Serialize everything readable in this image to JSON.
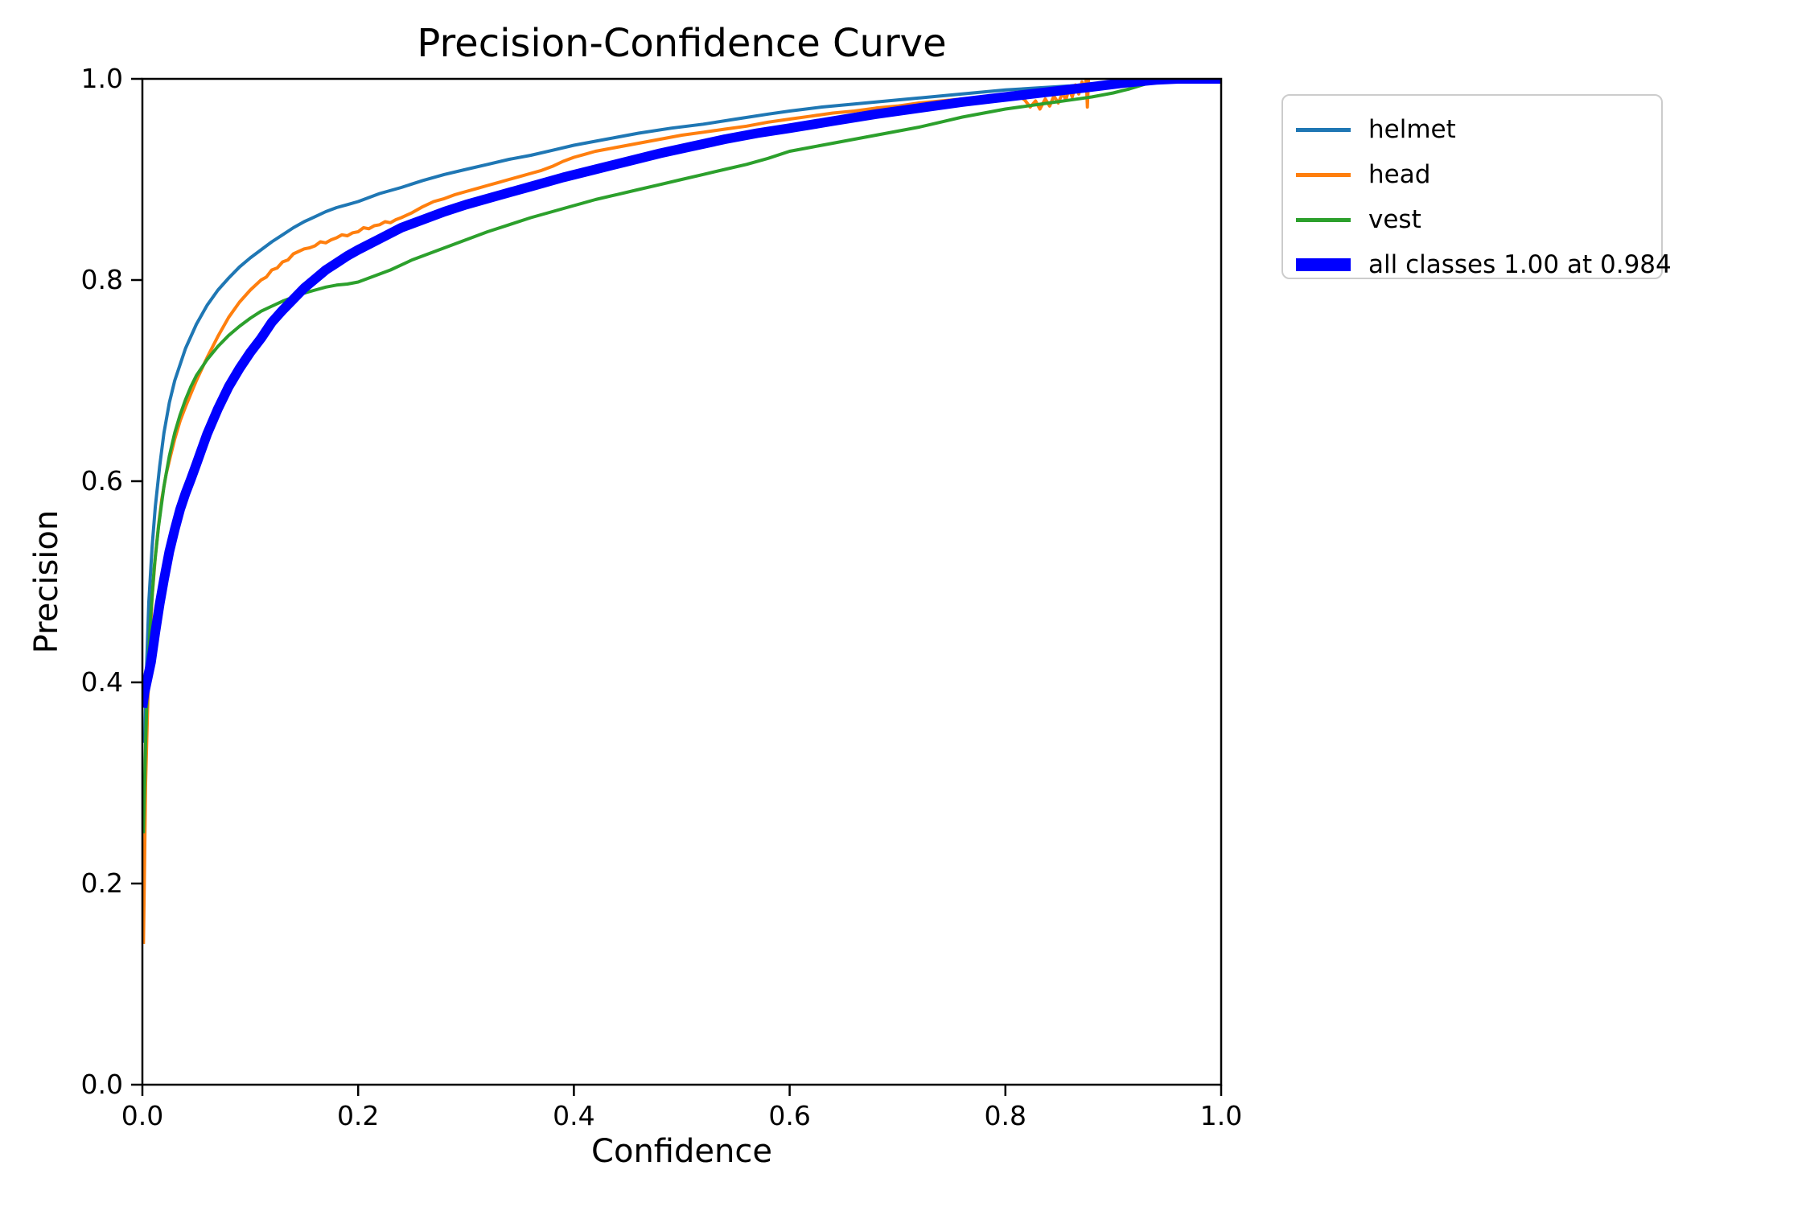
{
  "figure": {
    "title": "Precision-Confidence Curve",
    "background_color": "#ffffff",
    "frame_color": "#000000"
  },
  "axes": {
    "xlabel": "Confidence",
    "ylabel": "Precision",
    "xlim": [
      0.0,
      1.0
    ],
    "ylim": [
      0.0,
      1.0
    ],
    "x_tick_values": [
      0.0,
      0.2,
      0.4,
      0.6,
      0.8,
      1.0
    ],
    "x_tick_labels": [
      "0.0",
      "0.2",
      "0.4",
      "0.6",
      "0.8",
      "1.0"
    ],
    "y_tick_values": [
      0.0,
      0.2,
      0.4,
      0.6,
      0.8,
      1.0
    ],
    "y_tick_labels": [
      "0.0",
      "0.2",
      "0.4",
      "0.6",
      "0.8",
      "1.0"
    ]
  },
  "legend": {
    "items": [
      {
        "label": "helmet",
        "color": "#1f77b4",
        "thickness": 5
      },
      {
        "label": "head",
        "color": "#ff7f0e",
        "thickness": 5
      },
      {
        "label": "vest",
        "color": "#2ca02c",
        "thickness": 5
      },
      {
        "label": "all classes 1.00 at 0.984",
        "color": "#0000ff",
        "thickness": 16
      }
    ]
  },
  "chart_data": {
    "type": "line",
    "title": "Precision-Confidence Curve",
    "xlabel": "Confidence",
    "ylabel": "Precision",
    "xlim": [
      0.0,
      1.0
    ],
    "ylim": [
      0.0,
      1.0
    ],
    "grid": false,
    "legend_position": "outside upper right",
    "series": [
      {
        "name": "helmet",
        "color": "#1f77b4",
        "width": 4,
        "points": [
          [
            0.002,
            0.34
          ],
          [
            0.004,
            0.42
          ],
          [
            0.006,
            0.48
          ],
          [
            0.009,
            0.535
          ],
          [
            0.012,
            0.575
          ],
          [
            0.016,
            0.615
          ],
          [
            0.02,
            0.648
          ],
          [
            0.025,
            0.678
          ],
          [
            0.03,
            0.7
          ],
          [
            0.04,
            0.732
          ],
          [
            0.05,
            0.756
          ],
          [
            0.06,
            0.775
          ],
          [
            0.07,
            0.79
          ],
          [
            0.08,
            0.802
          ],
          [
            0.09,
            0.813
          ],
          [
            0.1,
            0.822
          ],
          [
            0.11,
            0.83
          ],
          [
            0.12,
            0.838
          ],
          [
            0.13,
            0.845
          ],
          [
            0.14,
            0.852
          ],
          [
            0.15,
            0.858
          ],
          [
            0.16,
            0.863
          ],
          [
            0.17,
            0.868
          ],
          [
            0.18,
            0.872
          ],
          [
            0.19,
            0.875
          ],
          [
            0.2,
            0.878
          ],
          [
            0.21,
            0.882
          ],
          [
            0.22,
            0.886
          ],
          [
            0.24,
            0.892
          ],
          [
            0.26,
            0.899
          ],
          [
            0.28,
            0.905
          ],
          [
            0.3,
            0.91
          ],
          [
            0.32,
            0.915
          ],
          [
            0.34,
            0.92
          ],
          [
            0.36,
            0.924
          ],
          [
            0.38,
            0.929
          ],
          [
            0.4,
            0.934
          ],
          [
            0.43,
            0.94
          ],
          [
            0.46,
            0.946
          ],
          [
            0.49,
            0.951
          ],
          [
            0.52,
            0.955
          ],
          [
            0.55,
            0.96
          ],
          [
            0.58,
            0.965
          ],
          [
            0.6,
            0.968
          ],
          [
            0.63,
            0.972
          ],
          [
            0.66,
            0.975
          ],
          [
            0.69,
            0.978
          ],
          [
            0.72,
            0.981
          ],
          [
            0.75,
            0.984
          ],
          [
            0.78,
            0.987
          ],
          [
            0.8,
            0.989
          ],
          [
            0.83,
            0.991
          ],
          [
            0.86,
            0.993
          ],
          [
            0.89,
            0.996
          ],
          [
            0.91,
            0.998
          ],
          [
            0.93,
            1.0
          ]
        ]
      },
      {
        "name": "head",
        "color": "#ff7f0e",
        "width": 4,
        "points": [
          [
            0.001,
            0.14
          ],
          [
            0.002,
            0.22
          ],
          [
            0.003,
            0.3
          ],
          [
            0.005,
            0.38
          ],
          [
            0.007,
            0.44
          ],
          [
            0.009,
            0.485
          ],
          [
            0.012,
            0.525
          ],
          [
            0.015,
            0.556
          ],
          [
            0.018,
            0.582
          ],
          [
            0.022,
            0.607
          ],
          [
            0.026,
            0.625
          ],
          [
            0.03,
            0.642
          ],
          [
            0.035,
            0.66
          ],
          [
            0.04,
            0.674
          ],
          [
            0.045,
            0.687
          ],
          [
            0.05,
            0.7
          ],
          [
            0.06,
            0.723
          ],
          [
            0.07,
            0.744
          ],
          [
            0.08,
            0.763
          ],
          [
            0.09,
            0.778
          ],
          [
            0.1,
            0.79
          ],
          [
            0.11,
            0.8
          ],
          [
            0.115,
            0.803
          ],
          [
            0.12,
            0.81
          ],
          [
            0.125,
            0.812
          ],
          [
            0.13,
            0.818
          ],
          [
            0.135,
            0.82
          ],
          [
            0.14,
            0.826
          ],
          [
            0.15,
            0.831
          ],
          [
            0.155,
            0.832
          ],
          [
            0.16,
            0.834
          ],
          [
            0.165,
            0.838
          ],
          [
            0.17,
            0.837
          ],
          [
            0.175,
            0.84
          ],
          [
            0.18,
            0.842
          ],
          [
            0.185,
            0.845
          ],
          [
            0.19,
            0.844
          ],
          [
            0.195,
            0.847
          ],
          [
            0.2,
            0.848
          ],
          [
            0.205,
            0.852
          ],
          [
            0.21,
            0.851
          ],
          [
            0.215,
            0.854
          ],
          [
            0.22,
            0.855
          ],
          [
            0.225,
            0.858
          ],
          [
            0.23,
            0.857
          ],
          [
            0.235,
            0.86
          ],
          [
            0.24,
            0.862
          ],
          [
            0.25,
            0.867
          ],
          [
            0.26,
            0.873
          ],
          [
            0.27,
            0.878
          ],
          [
            0.28,
            0.881
          ],
          [
            0.29,
            0.885
          ],
          [
            0.3,
            0.888
          ],
          [
            0.31,
            0.891
          ],
          [
            0.32,
            0.894
          ],
          [
            0.33,
            0.897
          ],
          [
            0.34,
            0.9
          ],
          [
            0.35,
            0.903
          ],
          [
            0.36,
            0.906
          ],
          [
            0.37,
            0.909
          ],
          [
            0.38,
            0.913
          ],
          [
            0.39,
            0.918
          ],
          [
            0.4,
            0.922
          ],
          [
            0.41,
            0.925
          ],
          [
            0.42,
            0.928
          ],
          [
            0.43,
            0.93
          ],
          [
            0.44,
            0.932
          ],
          [
            0.45,
            0.934
          ],
          [
            0.46,
            0.936
          ],
          [
            0.47,
            0.938
          ],
          [
            0.48,
            0.94
          ],
          [
            0.49,
            0.942
          ],
          [
            0.5,
            0.944
          ],
          [
            0.52,
            0.947
          ],
          [
            0.54,
            0.95
          ],
          [
            0.56,
            0.953
          ],
          [
            0.58,
            0.957
          ],
          [
            0.6,
            0.96
          ],
          [
            0.62,
            0.963
          ],
          [
            0.64,
            0.966
          ],
          [
            0.66,
            0.968
          ],
          [
            0.68,
            0.971
          ],
          [
            0.7,
            0.973
          ],
          [
            0.72,
            0.976
          ],
          [
            0.74,
            0.978
          ],
          [
            0.76,
            0.98
          ],
          [
            0.78,
            0.982
          ],
          [
            0.795,
            0.9835
          ],
          [
            0.81,
            0.985
          ],
          [
            0.818,
            0.979
          ],
          [
            0.823,
            0.972
          ],
          [
            0.828,
            0.978
          ],
          [
            0.832,
            0.97
          ],
          [
            0.837,
            0.98
          ],
          [
            0.841,
            0.973
          ],
          [
            0.845,
            0.983
          ],
          [
            0.849,
            0.976
          ],
          [
            0.853,
            0.986
          ],
          [
            0.856,
            0.979
          ],
          [
            0.859,
            0.99
          ],
          [
            0.862,
            0.982
          ],
          [
            0.865,
            0.994
          ],
          [
            0.868,
            0.985
          ],
          [
            0.871,
            0.997
          ],
          [
            0.873,
            0.988
          ],
          [
            0.875,
            1.0
          ],
          [
            0.876,
            0.972
          ],
          [
            0.877,
            1.0
          ]
        ]
      },
      {
        "name": "vest",
        "color": "#2ca02c",
        "width": 4,
        "points": [
          [
            0.001,
            0.25
          ],
          [
            0.003,
            0.34
          ],
          [
            0.005,
            0.41
          ],
          [
            0.008,
            0.47
          ],
          [
            0.011,
            0.515
          ],
          [
            0.015,
            0.555
          ],
          [
            0.02,
            0.595
          ],
          [
            0.025,
            0.625
          ],
          [
            0.03,
            0.648
          ],
          [
            0.035,
            0.666
          ],
          [
            0.04,
            0.681
          ],
          [
            0.045,
            0.694
          ],
          [
            0.05,
            0.705
          ],
          [
            0.06,
            0.721
          ],
          [
            0.07,
            0.734
          ],
          [
            0.08,
            0.745
          ],
          [
            0.09,
            0.754
          ],
          [
            0.1,
            0.762
          ],
          [
            0.11,
            0.769
          ],
          [
            0.12,
            0.774
          ],
          [
            0.13,
            0.779
          ],
          [
            0.14,
            0.783
          ],
          [
            0.15,
            0.787
          ],
          [
            0.16,
            0.79
          ],
          [
            0.17,
            0.793
          ],
          [
            0.18,
            0.795
          ],
          [
            0.19,
            0.796
          ],
          [
            0.2,
            0.798
          ],
          [
            0.21,
            0.802
          ],
          [
            0.22,
            0.806
          ],
          [
            0.23,
            0.81
          ],
          [
            0.24,
            0.815
          ],
          [
            0.25,
            0.82
          ],
          [
            0.26,
            0.824
          ],
          [
            0.27,
            0.828
          ],
          [
            0.28,
            0.832
          ],
          [
            0.29,
            0.836
          ],
          [
            0.3,
            0.84
          ],
          [
            0.32,
            0.848
          ],
          [
            0.34,
            0.855
          ],
          [
            0.36,
            0.862
          ],
          [
            0.38,
            0.868
          ],
          [
            0.4,
            0.874
          ],
          [
            0.42,
            0.88
          ],
          [
            0.44,
            0.885
          ],
          [
            0.46,
            0.89
          ],
          [
            0.48,
            0.895
          ],
          [
            0.5,
            0.9
          ],
          [
            0.52,
            0.905
          ],
          [
            0.54,
            0.91
          ],
          [
            0.56,
            0.915
          ],
          [
            0.58,
            0.921
          ],
          [
            0.6,
            0.928
          ],
          [
            0.62,
            0.932
          ],
          [
            0.64,
            0.936
          ],
          [
            0.66,
            0.94
          ],
          [
            0.68,
            0.944
          ],
          [
            0.7,
            0.948
          ],
          [
            0.72,
            0.952
          ],
          [
            0.74,
            0.957
          ],
          [
            0.76,
            0.962
          ],
          [
            0.78,
            0.966
          ],
          [
            0.8,
            0.97
          ],
          [
            0.82,
            0.973
          ],
          [
            0.84,
            0.976
          ],
          [
            0.86,
            0.979
          ],
          [
            0.88,
            0.982
          ],
          [
            0.9,
            0.986
          ],
          [
            0.915,
            0.99
          ],
          [
            0.93,
            0.995
          ]
        ]
      },
      {
        "name": "all classes",
        "color": "#0000ff",
        "width": 12,
        "annotation": "1.00 at 0.984",
        "points": [
          [
            0.0,
            0.375
          ],
          [
            0.002,
            0.39
          ],
          [
            0.005,
            0.405
          ],
          [
            0.008,
            0.42
          ],
          [
            0.012,
            0.45
          ],
          [
            0.016,
            0.478
          ],
          [
            0.02,
            0.502
          ],
          [
            0.025,
            0.53
          ],
          [
            0.03,
            0.552
          ],
          [
            0.035,
            0.572
          ],
          [
            0.04,
            0.588
          ],
          [
            0.045,
            0.602
          ],
          [
            0.05,
            0.617
          ],
          [
            0.055,
            0.632
          ],
          [
            0.06,
            0.647
          ],
          [
            0.07,
            0.672
          ],
          [
            0.08,
            0.694
          ],
          [
            0.09,
            0.712
          ],
          [
            0.1,
            0.728
          ],
          [
            0.11,
            0.742
          ],
          [
            0.12,
            0.758
          ],
          [
            0.13,
            0.77
          ],
          [
            0.14,
            0.781
          ],
          [
            0.15,
            0.792
          ],
          [
            0.16,
            0.801
          ],
          [
            0.17,
            0.81
          ],
          [
            0.18,
            0.817
          ],
          [
            0.19,
            0.824
          ],
          [
            0.2,
            0.83
          ],
          [
            0.22,
            0.841
          ],
          [
            0.24,
            0.852
          ],
          [
            0.26,
            0.86
          ],
          [
            0.28,
            0.868
          ],
          [
            0.3,
            0.875
          ],
          [
            0.33,
            0.884
          ],
          [
            0.36,
            0.893
          ],
          [
            0.39,
            0.902
          ],
          [
            0.42,
            0.91
          ],
          [
            0.45,
            0.918
          ],
          [
            0.48,
            0.926
          ],
          [
            0.51,
            0.933
          ],
          [
            0.54,
            0.94
          ],
          [
            0.57,
            0.946
          ],
          [
            0.6,
            0.951
          ],
          [
            0.64,
            0.958
          ],
          [
            0.68,
            0.965
          ],
          [
            0.72,
            0.971
          ],
          [
            0.76,
            0.977
          ],
          [
            0.8,
            0.982
          ],
          [
            0.84,
            0.987
          ],
          [
            0.88,
            0.992
          ],
          [
            0.91,
            0.996
          ],
          [
            0.94,
            0.999
          ],
          [
            0.96,
            1.0
          ],
          [
            0.984,
            1.0
          ],
          [
            1.0,
            1.0
          ]
        ]
      }
    ]
  }
}
